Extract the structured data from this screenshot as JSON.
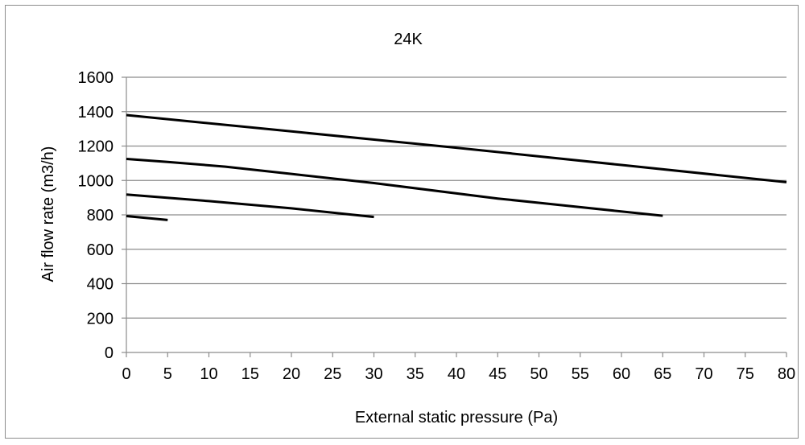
{
  "chart_data": {
    "type": "line",
    "title": "24K",
    "xlabel": "External static pressure (Pa)",
    "ylabel": "Air flow rate (m3/h)",
    "xlim": [
      0,
      80
    ],
    "ylim": [
      0,
      1600
    ],
    "x_ticks": [
      0,
      5,
      10,
      15,
      20,
      25,
      30,
      35,
      40,
      45,
      50,
      55,
      60,
      65,
      70,
      75,
      80
    ],
    "y_ticks": [
      0,
      200,
      400,
      600,
      800,
      1000,
      1200,
      1400,
      1600
    ],
    "grid": "horizontal",
    "legend": "none",
    "line_color": "#000000",
    "grid_color": "#8c8c8c",
    "series": [
      {
        "points": [
          [
            0,
            1380
          ],
          [
            20,
            1285
          ],
          [
            40,
            1190
          ],
          [
            60,
            1090
          ],
          [
            80,
            990
          ]
        ]
      },
      {
        "points": [
          [
            0,
            1125
          ],
          [
            5,
            1108
          ],
          [
            12,
            1080
          ],
          [
            20,
            1038
          ],
          [
            30,
            985
          ],
          [
            45,
            895
          ],
          [
            65,
            795
          ]
        ]
      },
      {
        "points": [
          [
            0,
            918
          ],
          [
            10,
            880
          ],
          [
            20,
            838
          ],
          [
            30,
            788
          ]
        ]
      },
      {
        "points": [
          [
            0,
            793
          ],
          [
            5,
            770
          ]
        ]
      }
    ]
  }
}
